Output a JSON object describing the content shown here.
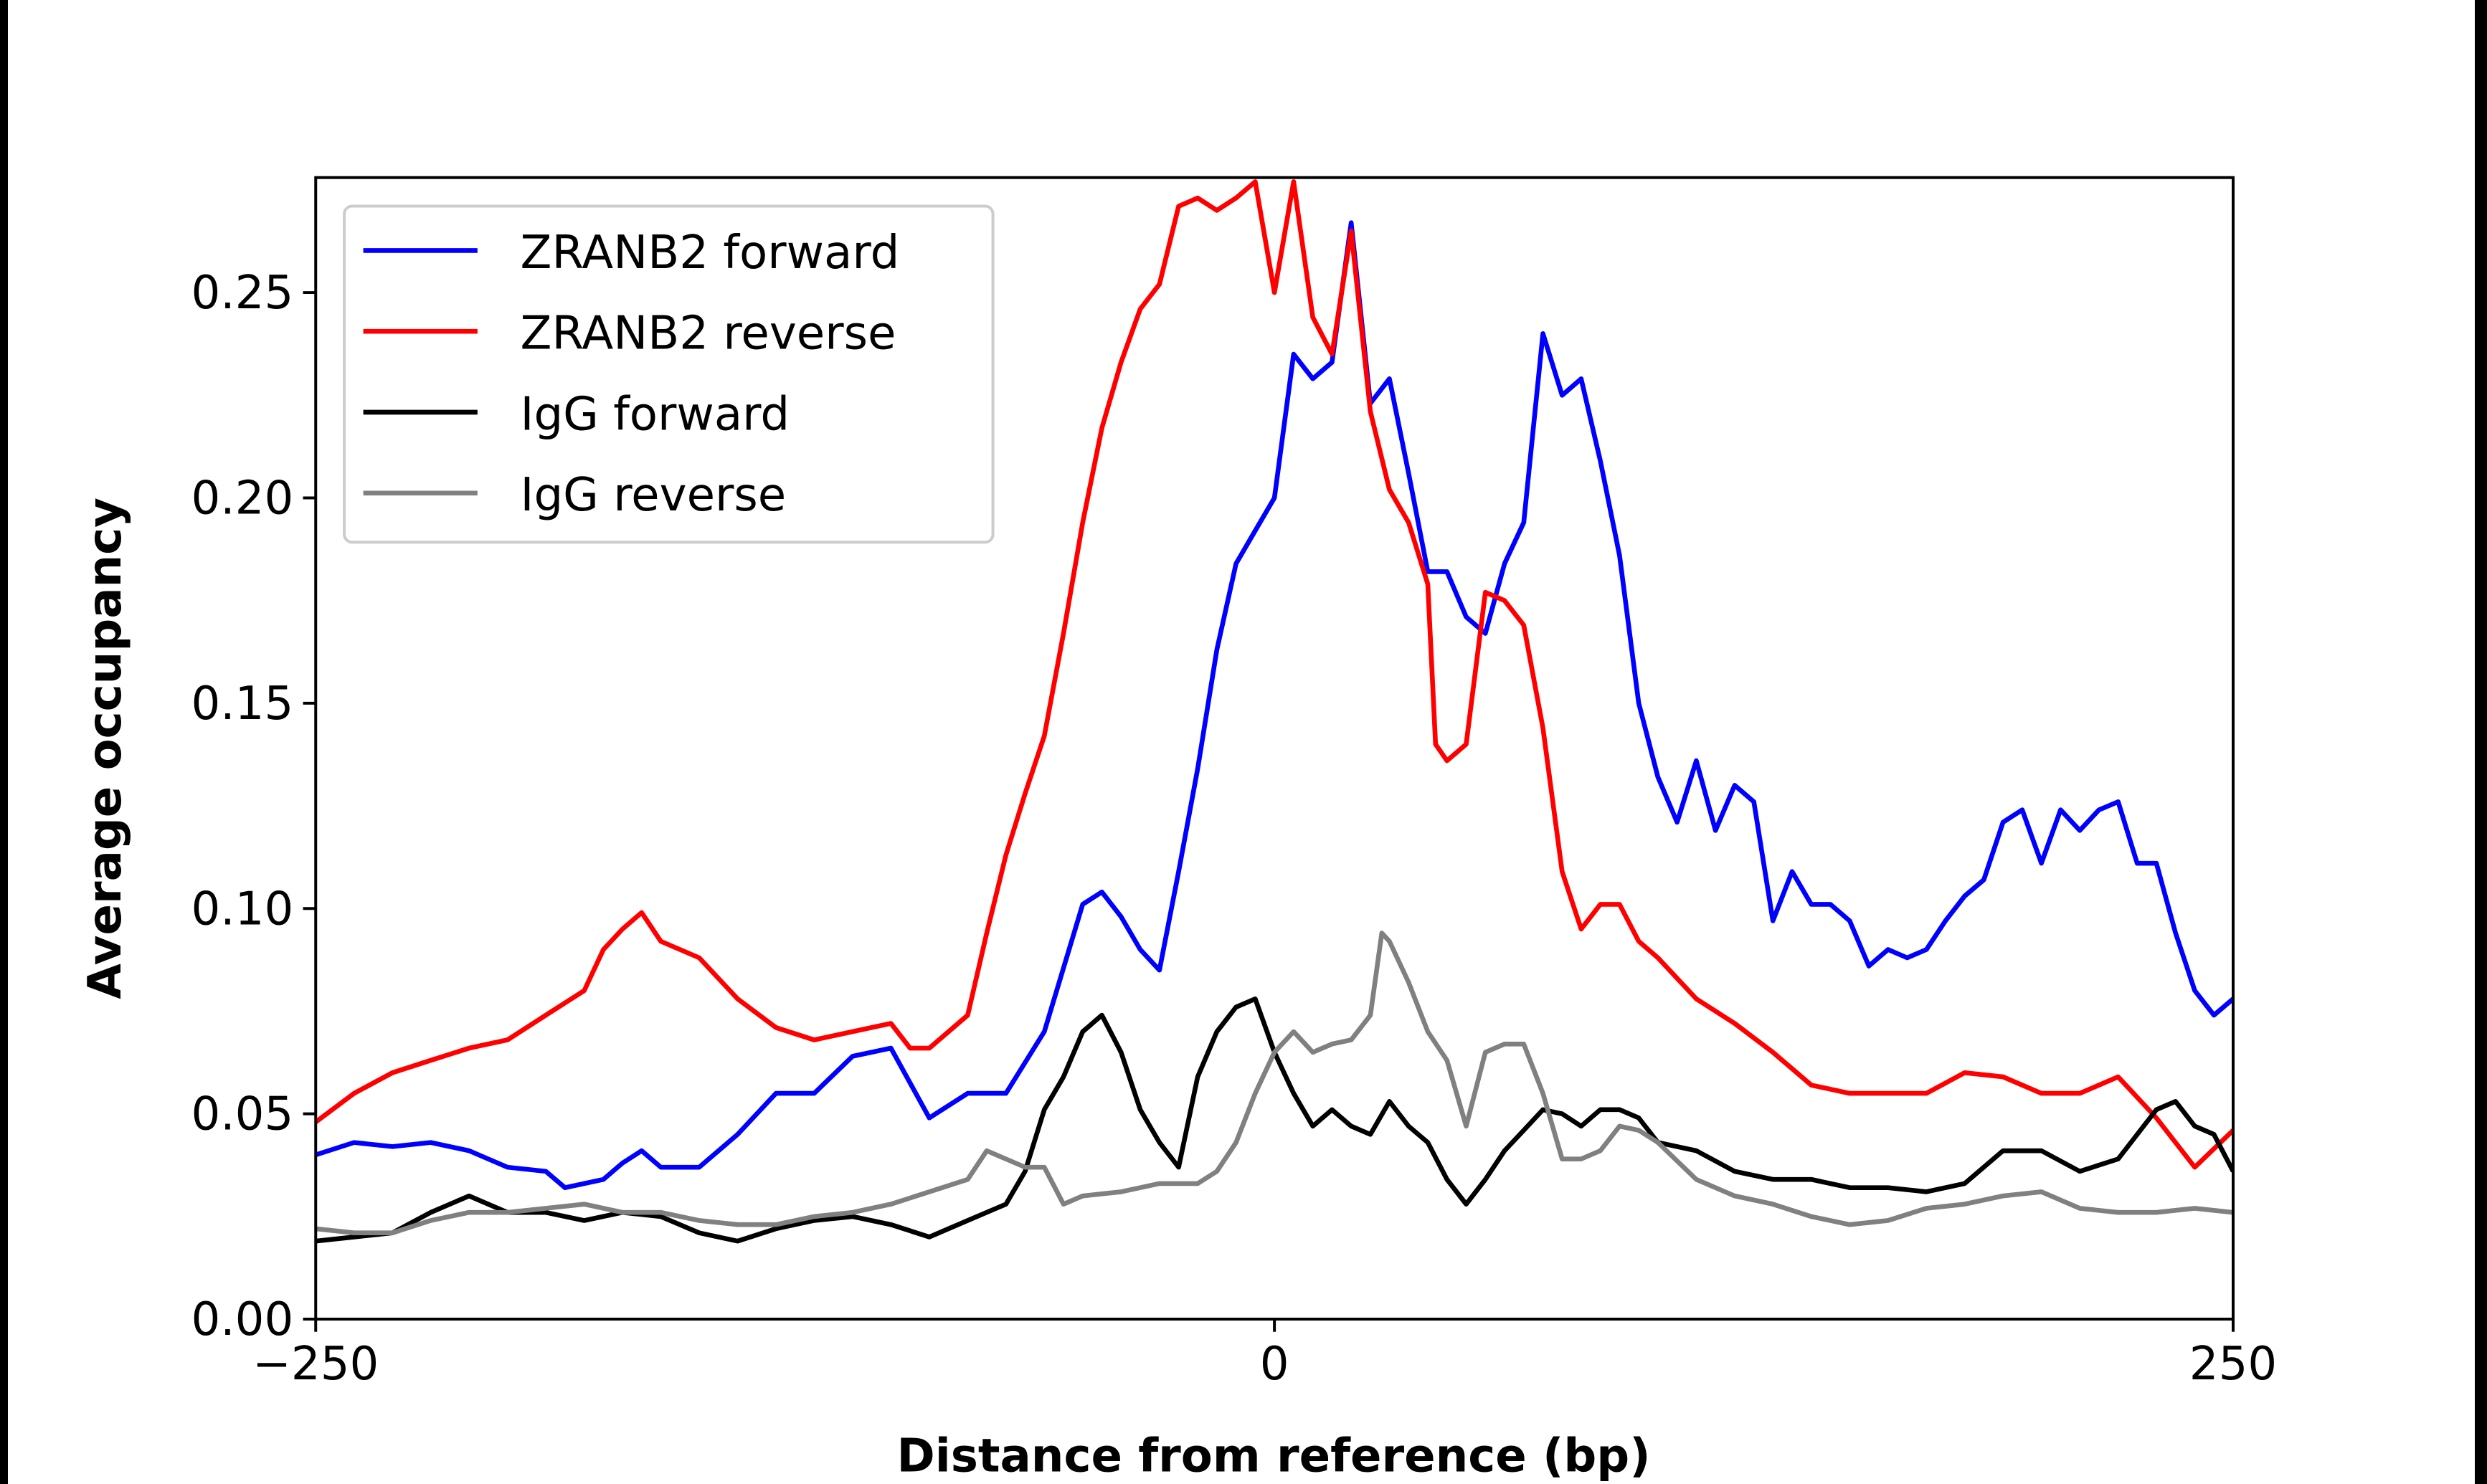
{
  "chart_data": {
    "type": "line",
    "title": "",
    "xlabel": "Distance from reference (bp)",
    "ylabel": "Average occupancy",
    "xlim": [
      -250,
      250
    ],
    "ylim": [
      0,
      0.278
    ],
    "xticks": [
      -250,
      0,
      250
    ],
    "xtick_labels": [
      "−250",
      "0",
      "250"
    ],
    "yticks": [
      0,
      0.05,
      0.1,
      0.15,
      0.2,
      0.25
    ],
    "ytick_labels": [
      "0.00",
      "0.05",
      "0.10",
      "0.15",
      "0.20",
      "0.25"
    ],
    "grid": false,
    "legend_position": "top-left",
    "series": [
      {
        "name": "ZRANB2 forward",
        "color": "#0000ff",
        "points": [
          [
            -250,
            0.04
          ],
          [
            -240,
            0.043
          ],
          [
            -230,
            0.042
          ],
          [
            -220,
            0.043
          ],
          [
            -210,
            0.041
          ],
          [
            -200,
            0.037
          ],
          [
            -190,
            0.036
          ],
          [
            -185,
            0.032
          ],
          [
            -175,
            0.034
          ],
          [
            -170,
            0.038
          ],
          [
            -165,
            0.041
          ],
          [
            -160,
            0.037
          ],
          [
            -150,
            0.037
          ],
          [
            -140,
            0.045
          ],
          [
            -130,
            0.055
          ],
          [
            -120,
            0.055
          ],
          [
            -110,
            0.064
          ],
          [
            -100,
            0.066
          ],
          [
            -90,
            0.049
          ],
          [
            -80,
            0.055
          ],
          [
            -70,
            0.055
          ],
          [
            -60,
            0.07
          ],
          [
            -50,
            0.101
          ],
          [
            -45,
            0.104
          ],
          [
            -40,
            0.098
          ],
          [
            -35,
            0.09
          ],
          [
            -30,
            0.085
          ],
          [
            -25,
            0.109
          ],
          [
            -20,
            0.134
          ],
          [
            -15,
            0.163
          ],
          [
            -10,
            0.184
          ],
          [
            -5,
            0.192
          ],
          [
            0,
            0.2
          ],
          [
            5,
            0.235
          ],
          [
            10,
            0.229
          ],
          [
            15,
            0.233
          ],
          [
            20,
            0.267
          ],
          [
            25,
            0.223
          ],
          [
            30,
            0.229
          ],
          [
            35,
            0.206
          ],
          [
            40,
            0.182
          ],
          [
            45,
            0.182
          ],
          [
            50,
            0.171
          ],
          [
            55,
            0.167
          ],
          [
            60,
            0.184
          ],
          [
            65,
            0.194
          ],
          [
            70,
            0.24
          ],
          [
            75,
            0.225
          ],
          [
            80,
            0.229
          ],
          [
            85,
            0.209
          ],
          [
            90,
            0.186
          ],
          [
            95,
            0.15
          ],
          [
            100,
            0.132
          ],
          [
            105,
            0.121
          ],
          [
            110,
            0.136
          ],
          [
            115,
            0.119
          ],
          [
            120,
            0.13
          ],
          [
            125,
            0.126
          ],
          [
            130,
            0.097
          ],
          [
            135,
            0.109
          ],
          [
            140,
            0.101
          ],
          [
            145,
            0.101
          ],
          [
            150,
            0.097
          ],
          [
            155,
            0.086
          ],
          [
            160,
            0.09
          ],
          [
            165,
            0.088
          ],
          [
            170,
            0.09
          ],
          [
            175,
            0.097
          ],
          [
            180,
            0.103
          ],
          [
            185,
            0.107
          ],
          [
            190,
            0.121
          ],
          [
            195,
            0.124
          ],
          [
            200,
            0.111
          ],
          [
            205,
            0.124
          ],
          [
            210,
            0.119
          ],
          [
            215,
            0.124
          ],
          [
            220,
            0.126
          ],
          [
            225,
            0.111
          ],
          [
            230,
            0.111
          ],
          [
            235,
            0.094
          ],
          [
            240,
            0.08
          ],
          [
            245,
            0.074
          ],
          [
            250,
            0.078
          ]
        ]
      },
      {
        "name": "ZRANB2 reverse",
        "color": "#ff0000",
        "points": [
          [
            -250,
            0.048
          ],
          [
            -240,
            0.055
          ],
          [
            -230,
            0.06
          ],
          [
            -220,
            0.063
          ],
          [
            -210,
            0.066
          ],
          [
            -200,
            0.068
          ],
          [
            -190,
            0.074
          ],
          [
            -180,
            0.08
          ],
          [
            -175,
            0.09
          ],
          [
            -170,
            0.095
          ],
          [
            -165,
            0.099
          ],
          [
            -160,
            0.092
          ],
          [
            -150,
            0.088
          ],
          [
            -140,
            0.078
          ],
          [
            -130,
            0.071
          ],
          [
            -120,
            0.068
          ],
          [
            -110,
            0.07
          ],
          [
            -100,
            0.072
          ],
          [
            -95,
            0.066
          ],
          [
            -90,
            0.066
          ],
          [
            -80,
            0.074
          ],
          [
            -75,
            0.094
          ],
          [
            -70,
            0.113
          ],
          [
            -65,
            0.128
          ],
          [
            -60,
            0.142
          ],
          [
            -55,
            0.167
          ],
          [
            -50,
            0.194
          ],
          [
            -45,
            0.217
          ],
          [
            -40,
            0.233
          ],
          [
            -35,
            0.246
          ],
          [
            -30,
            0.252
          ],
          [
            -25,
            0.271
          ],
          [
            -20,
            0.273
          ],
          [
            -15,
            0.27
          ],
          [
            -10,
            0.273
          ],
          [
            -5,
            0.277
          ],
          [
            0,
            0.25
          ],
          [
            5,
            0.277
          ],
          [
            10,
            0.244
          ],
          [
            15,
            0.235
          ],
          [
            20,
            0.265
          ],
          [
            25,
            0.221
          ],
          [
            30,
            0.202
          ],
          [
            35,
            0.194
          ],
          [
            40,
            0.179
          ],
          [
            42,
            0.14
          ],
          [
            45,
            0.136
          ],
          [
            50,
            0.14
          ],
          [
            55,
            0.177
          ],
          [
            60,
            0.175
          ],
          [
            65,
            0.169
          ],
          [
            70,
            0.144
          ],
          [
            75,
            0.109
          ],
          [
            80,
            0.095
          ],
          [
            85,
            0.101
          ],
          [
            90,
            0.101
          ],
          [
            95,
            0.092
          ],
          [
            100,
            0.088
          ],
          [
            110,
            0.078
          ],
          [
            120,
            0.072
          ],
          [
            130,
            0.065
          ],
          [
            140,
            0.057
          ],
          [
            150,
            0.055
          ],
          [
            160,
            0.055
          ],
          [
            170,
            0.055
          ],
          [
            180,
            0.06
          ],
          [
            190,
            0.059
          ],
          [
            200,
            0.055
          ],
          [
            210,
            0.055
          ],
          [
            220,
            0.059
          ],
          [
            230,
            0.049
          ],
          [
            240,
            0.037
          ],
          [
            250,
            0.046
          ]
        ]
      },
      {
        "name": "IgG forward",
        "color": "#000000",
        "points": [
          [
            -250,
            0.019
          ],
          [
            -240,
            0.02
          ],
          [
            -230,
            0.021
          ],
          [
            -220,
            0.026
          ],
          [
            -210,
            0.03
          ],
          [
            -200,
            0.026
          ],
          [
            -190,
            0.026
          ],
          [
            -180,
            0.024
          ],
          [
            -170,
            0.026
          ],
          [
            -160,
            0.025
          ],
          [
            -150,
            0.021
          ],
          [
            -140,
            0.019
          ],
          [
            -130,
            0.022
          ],
          [
            -120,
            0.024
          ],
          [
            -110,
            0.025
          ],
          [
            -100,
            0.023
          ],
          [
            -90,
            0.02
          ],
          [
            -80,
            0.024
          ],
          [
            -70,
            0.028
          ],
          [
            -65,
            0.036
          ],
          [
            -60,
            0.051
          ],
          [
            -55,
            0.059
          ],
          [
            -50,
            0.07
          ],
          [
            -45,
            0.074
          ],
          [
            -40,
            0.065
          ],
          [
            -35,
            0.051
          ],
          [
            -30,
            0.043
          ],
          [
            -25,
            0.037
          ],
          [
            -20,
            0.059
          ],
          [
            -15,
            0.07
          ],
          [
            -10,
            0.076
          ],
          [
            -5,
            0.078
          ],
          [
            0,
            0.065
          ],
          [
            5,
            0.055
          ],
          [
            10,
            0.047
          ],
          [
            15,
            0.051
          ],
          [
            20,
            0.047
          ],
          [
            25,
            0.045
          ],
          [
            30,
            0.053
          ],
          [
            35,
            0.047
          ],
          [
            40,
            0.043
          ],
          [
            45,
            0.034
          ],
          [
            50,
            0.028
          ],
          [
            55,
            0.034
          ],
          [
            60,
            0.041
          ],
          [
            65,
            0.046
          ],
          [
            70,
            0.051
          ],
          [
            75,
            0.05
          ],
          [
            80,
            0.047
          ],
          [
            85,
            0.051
          ],
          [
            90,
            0.051
          ],
          [
            95,
            0.049
          ],
          [
            100,
            0.043
          ],
          [
            110,
            0.041
          ],
          [
            120,
            0.036
          ],
          [
            130,
            0.034
          ],
          [
            140,
            0.034
          ],
          [
            150,
            0.032
          ],
          [
            160,
            0.032
          ],
          [
            170,
            0.031
          ],
          [
            180,
            0.033
          ],
          [
            190,
            0.041
          ],
          [
            200,
            0.041
          ],
          [
            210,
            0.036
          ],
          [
            220,
            0.039
          ],
          [
            230,
            0.051
          ],
          [
            235,
            0.053
          ],
          [
            240,
            0.047
          ],
          [
            245,
            0.045
          ],
          [
            250,
            0.036
          ]
        ]
      },
      {
        "name": "IgG reverse",
        "color": "#808080",
        "points": [
          [
            -250,
            0.022
          ],
          [
            -240,
            0.021
          ],
          [
            -230,
            0.021
          ],
          [
            -220,
            0.024
          ],
          [
            -210,
            0.026
          ],
          [
            -200,
            0.026
          ],
          [
            -190,
            0.027
          ],
          [
            -180,
            0.028
          ],
          [
            -170,
            0.026
          ],
          [
            -160,
            0.026
          ],
          [
            -150,
            0.024
          ],
          [
            -140,
            0.023
          ],
          [
            -130,
            0.023
          ],
          [
            -120,
            0.025
          ],
          [
            -110,
            0.026
          ],
          [
            -100,
            0.028
          ],
          [
            -90,
            0.031
          ],
          [
            -80,
            0.034
          ],
          [
            -75,
            0.041
          ],
          [
            -70,
            0.039
          ],
          [
            -65,
            0.037
          ],
          [
            -60,
            0.037
          ],
          [
            -55,
            0.028
          ],
          [
            -50,
            0.03
          ],
          [
            -40,
            0.031
          ],
          [
            -30,
            0.033
          ],
          [
            -20,
            0.033
          ],
          [
            -15,
            0.036
          ],
          [
            -10,
            0.043
          ],
          [
            -5,
            0.055
          ],
          [
            0,
            0.065
          ],
          [
            5,
            0.07
          ],
          [
            10,
            0.065
          ],
          [
            15,
            0.067
          ],
          [
            20,
            0.068
          ],
          [
            25,
            0.074
          ],
          [
            28,
            0.094
          ],
          [
            30,
            0.092
          ],
          [
            35,
            0.082
          ],
          [
            40,
            0.07
          ],
          [
            45,
            0.063
          ],
          [
            50,
            0.047
          ],
          [
            55,
            0.065
          ],
          [
            60,
            0.067
          ],
          [
            65,
            0.067
          ],
          [
            70,
            0.055
          ],
          [
            75,
            0.039
          ],
          [
            80,
            0.039
          ],
          [
            85,
            0.041
          ],
          [
            90,
            0.047
          ],
          [
            95,
            0.046
          ],
          [
            100,
            0.043
          ],
          [
            110,
            0.034
          ],
          [
            120,
            0.03
          ],
          [
            130,
            0.028
          ],
          [
            140,
            0.025
          ],
          [
            150,
            0.023
          ],
          [
            160,
            0.024
          ],
          [
            170,
            0.027
          ],
          [
            180,
            0.028
          ],
          [
            190,
            0.03
          ],
          [
            200,
            0.031
          ],
          [
            210,
            0.027
          ],
          [
            220,
            0.026
          ],
          [
            230,
            0.026
          ],
          [
            240,
            0.027
          ],
          [
            250,
            0.026
          ]
        ]
      }
    ]
  }
}
